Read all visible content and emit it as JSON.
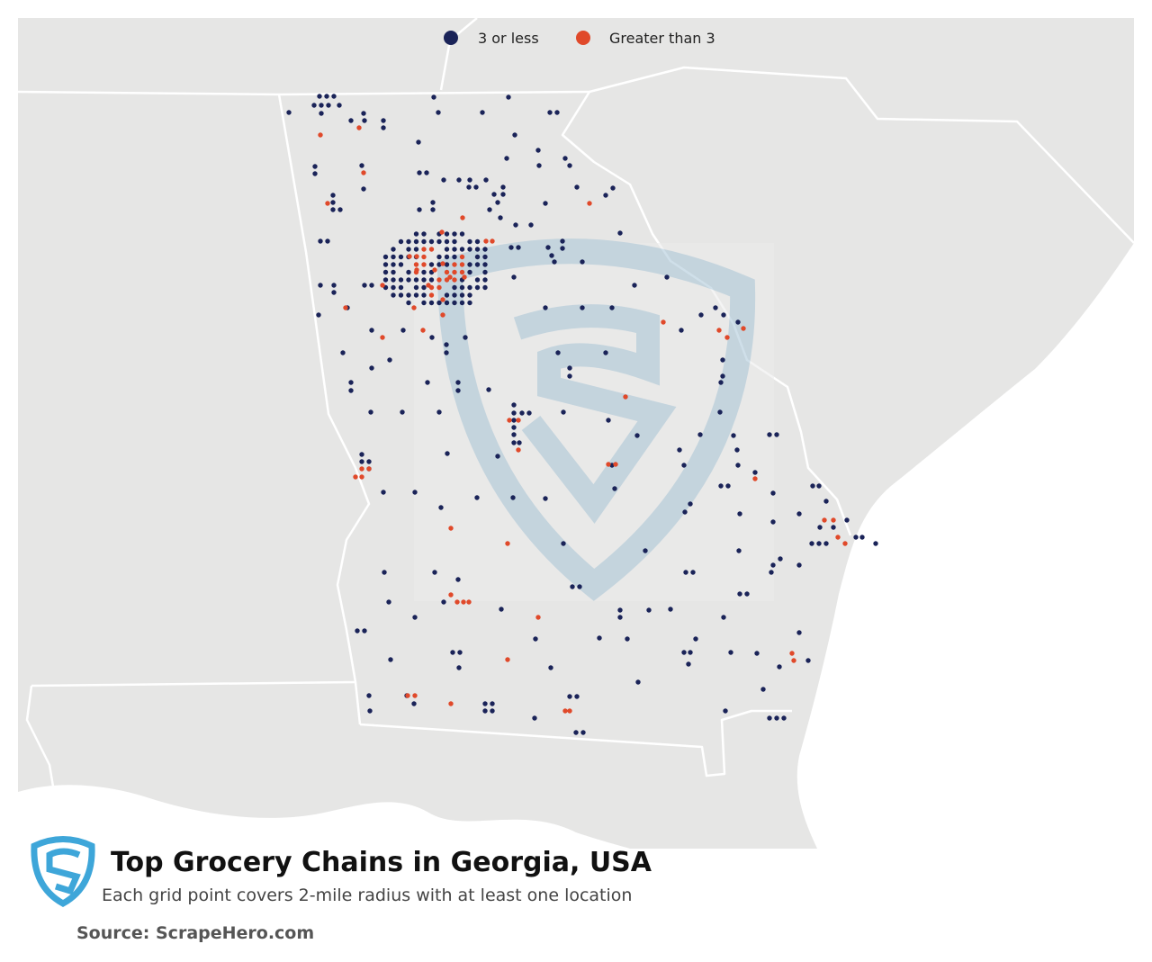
{
  "legend": {
    "items": [
      {
        "label": "3 or less",
        "color": "#1a2358"
      },
      {
        "label": "Greater than 3",
        "color": "#e0492a"
      }
    ]
  },
  "title": "Top Grocery Chains in Georgia, USA",
  "subtitle": "Each grid point covers 2-mile radius with at least one location",
  "source": "Source: ScrapeHero.com"
}
